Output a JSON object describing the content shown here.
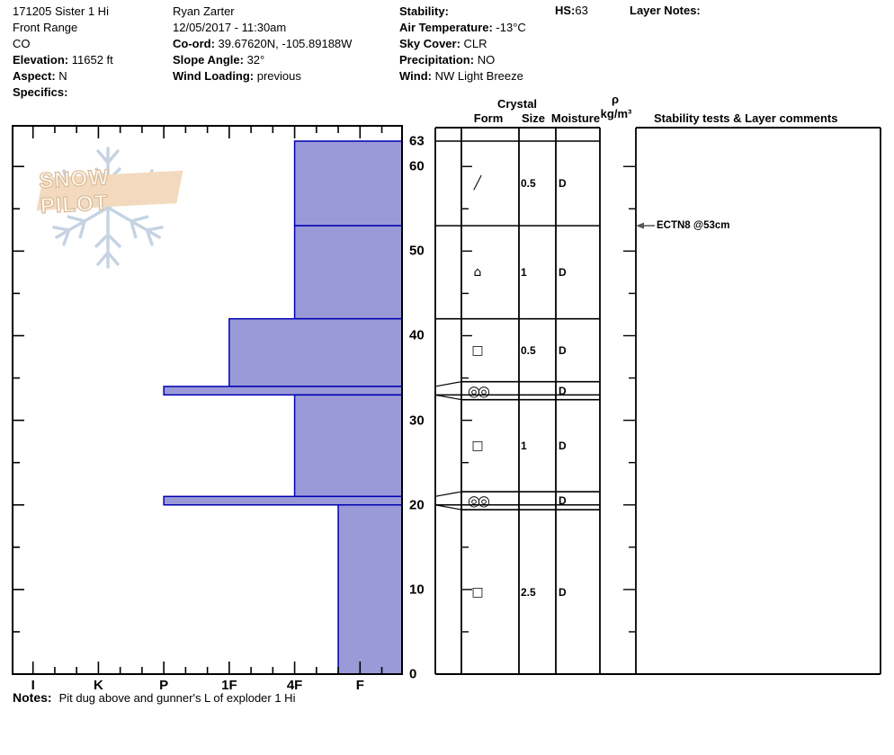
{
  "header": {
    "columns": [
      {
        "lines": [
          {
            "label": "",
            "value": "171205 Sister 1 Hi"
          },
          {
            "label": "",
            "value": "Front Range"
          },
          {
            "label": "",
            "value": "CO"
          },
          {
            "label": "Elevation:",
            "value": " 11652 ft"
          },
          {
            "label": "Aspect:",
            "value": " N"
          },
          {
            "label": "Specifics:",
            "value": ""
          }
        ]
      },
      {
        "lines": [
          {
            "label": "",
            "value": "Ryan Zarter"
          },
          {
            "label": "",
            "value": "12/05/2017 - 11:30am"
          },
          {
            "label": "Co-ord:",
            "value": " 39.67620N, -105.89188W"
          },
          {
            "label": "Slope Angle:",
            "value": " 32°"
          },
          {
            "label": "Wind Loading:",
            "value": " previous"
          }
        ]
      },
      {
        "lines": [
          {
            "label": "Stability:",
            "value": ""
          },
          {
            "label": "Air Temperature:",
            "value": " -13°C"
          },
          {
            "label": "Sky Cover:",
            "value": " CLR"
          },
          {
            "label": "Precipitation:",
            "value": " NO"
          },
          {
            "label": "Wind:",
            "value": "  NW Light Breeze"
          }
        ]
      }
    ],
    "hs": {
      "label": "HS:",
      "value": "63"
    },
    "layer_notes_label": "Layer Notes:"
  },
  "table_headers": {
    "crystal": "Crystal",
    "form": "Form",
    "size": "Size",
    "moisture": "Moisture",
    "rho": "ρ",
    "rho_unit": "kg/m³",
    "stability": "Stability tests & Layer comments"
  },
  "logo": {
    "text": "SNOW PILOT",
    "banner_color": "#f3dabf",
    "snowflake_color": "#c5d3e2"
  },
  "notes": {
    "label": "Notes:",
    "text": "Pit dug above and gunner's L of exploder 1 Hi"
  },
  "chart_data": {
    "type": "bar",
    "title": "Snow pit hardness profile",
    "orientation": "horizontal-bars-from-right",
    "hardness_axis": {
      "categories": [
        "I",
        "K",
        "P",
        "1F",
        "4F",
        "F"
      ],
      "minor_ticks_per_step": 3
    },
    "depth_axis": {
      "unit": "cm",
      "max": 63,
      "tick_labels": [
        63,
        60,
        50,
        40,
        30,
        20,
        10,
        0
      ],
      "minor_step": 5
    },
    "layers": [
      {
        "top_cm": 63,
        "bottom_cm": 53,
        "hardness": "4F",
        "form_symbol": "╱",
        "form_name": "decomposing-fragments",
        "size_mm": "0.5",
        "moisture": "D",
        "thin": false
      },
      {
        "top_cm": 53,
        "bottom_cm": 42,
        "hardness": "4F",
        "form_symbol": "⌂",
        "form_name": "mixed-forms",
        "size_mm": "1",
        "moisture": "D",
        "thin": false
      },
      {
        "top_cm": 42,
        "bottom_cm": 34,
        "hardness": "1F",
        "form_symbol": "□",
        "form_name": "faceted-crystals",
        "size_mm": "0.5",
        "moisture": "D",
        "thin": false
      },
      {
        "top_cm": 34,
        "bottom_cm": 33,
        "hardness": "P",
        "form_symbol": "◎◎",
        "form_name": "melt-freeze-crust",
        "size_mm": "",
        "moisture": "D",
        "thin": true
      },
      {
        "top_cm": 33,
        "bottom_cm": 21,
        "hardness": "4F",
        "form_symbol": "□",
        "form_name": "faceted-crystals",
        "size_mm": "1",
        "moisture": "D",
        "thin": false
      },
      {
        "top_cm": 21,
        "bottom_cm": 20,
        "hardness": "P",
        "form_symbol": "◎◎",
        "form_name": "melt-freeze-crust",
        "size_mm": "",
        "moisture": "D",
        "thin": true
      },
      {
        "top_cm": 20,
        "bottom_cm": 0,
        "hardness": "F+",
        "form_symbol": "□",
        "form_name": "faceted-crystals",
        "size_mm": "2.5",
        "moisture": "D",
        "thin": false
      }
    ],
    "annotations": [
      {
        "text": "ECTN8 @53cm",
        "depth_cm": 53
      }
    ],
    "colors": {
      "bar_fill": "#9a9ad8",
      "bar_border": "#0000b2",
      "axis": "#000000",
      "arrow": "#555555"
    }
  }
}
